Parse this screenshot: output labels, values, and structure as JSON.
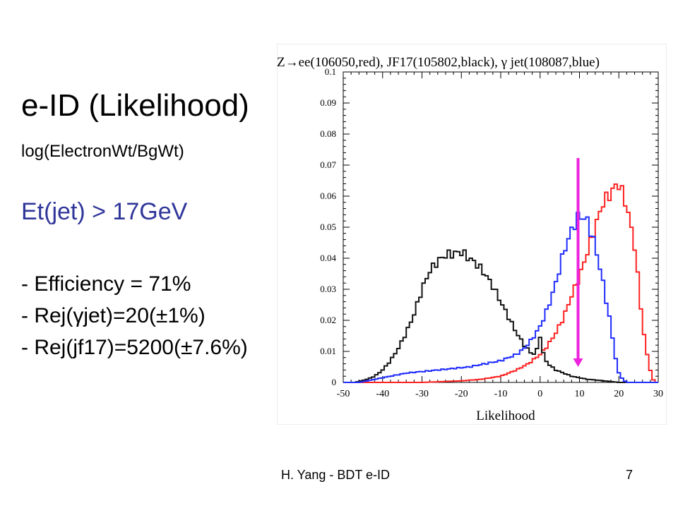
{
  "slide": {
    "title": "e-ID (Likelihood)",
    "subtitle": "log(ElectronWt/BgWt)",
    "cut": "Et(jet) > 17GeV",
    "bullets": [
      "- Efficiency = 71%",
      "- Rej(γjet)=20(±1%)",
      "- Rej(jf17)=5200(±7.6%)"
    ],
    "footer_author": "H. Yang - BDT e-ID",
    "footer_page": "7"
  },
  "colors": {
    "red": "#ff2020",
    "black": "#111111",
    "blue": "#1f2cff",
    "cut_arrow": "#ee22dd",
    "cut_text": "#2f3699"
  },
  "chart_data": {
    "type": "line",
    "title": "Z→ee(106050,red), JF17(105802,black), γ jet(108087,blue)",
    "xlabel": "Likelihood",
    "ylabel": "",
    "xlim": [
      -50,
      30
    ],
    "ylim": [
      0,
      0.1
    ],
    "x_ticks": [
      -50,
      -40,
      -30,
      -20,
      -10,
      0,
      10,
      20,
      30
    ],
    "y_ticks": [
      0,
      0.01,
      0.02,
      0.03,
      0.04,
      0.05,
      0.06,
      0.07,
      0.08,
      0.09,
      0.1
    ],
    "legend": "none",
    "grid": false,
    "cut_value": 10,
    "series": [
      {
        "color": "red",
        "x": [
          -30,
          -20,
          -15,
          -10,
          -6,
          -3,
          0,
          2,
          4,
          6,
          8,
          10,
          12,
          14,
          16,
          18,
          19,
          20,
          22,
          24,
          25,
          26,
          27,
          28,
          29
        ],
        "y": [
          0,
          0.0005,
          0.001,
          0.002,
          0.004,
          0.006,
          0.009,
          0.012,
          0.016,
          0.021,
          0.028,
          0.034,
          0.042,
          0.05,
          0.058,
          0.061,
          0.063,
          0.064,
          0.057,
          0.044,
          0.032,
          0.019,
          0.01,
          0.004,
          0
        ]
      },
      {
        "color": "black",
        "x": [
          -47,
          -44,
          -42,
          -40,
          -38,
          -36,
          -34,
          -32,
          -30,
          -28,
          -26,
          -24,
          -22,
          -20,
          -18,
          -16,
          -14,
          -12,
          -10,
          -8,
          -6,
          -4,
          -2,
          -1,
          0,
          1,
          2,
          4,
          6,
          8,
          10,
          12,
          14,
          16,
          18,
          20
        ],
        "y": [
          0,
          0.001,
          0.002,
          0.004,
          0.007,
          0.011,
          0.016,
          0.022,
          0.03,
          0.036,
          0.039,
          0.041,
          0.0415,
          0.042,
          0.04,
          0.038,
          0.035,
          0.031,
          0.026,
          0.021,
          0.016,
          0.012,
          0.009,
          0.0095,
          0.015,
          0.008,
          0.006,
          0.004,
          0.003,
          0.002,
          0.0015,
          0.001,
          0.0008,
          0.0005,
          0.0003,
          0
        ]
      },
      {
        "color": "blue",
        "x": [
          -46,
          -42,
          -38,
          -34,
          -30,
          -26,
          -22,
          -18,
          -14,
          -10,
          -8,
          -6,
          -4,
          -2,
          0,
          2,
          4,
          6,
          8,
          10,
          12,
          14,
          16,
          18,
          19,
          20,
          21,
          22
        ],
        "y": [
          0,
          0.001,
          0.002,
          0.003,
          0.0035,
          0.004,
          0.0045,
          0.005,
          0.006,
          0.007,
          0.008,
          0.009,
          0.011,
          0.014,
          0.018,
          0.024,
          0.032,
          0.042,
          0.049,
          0.054,
          0.052,
          0.044,
          0.032,
          0.018,
          0.009,
          0.003,
          0.001,
          0
        ]
      }
    ]
  }
}
